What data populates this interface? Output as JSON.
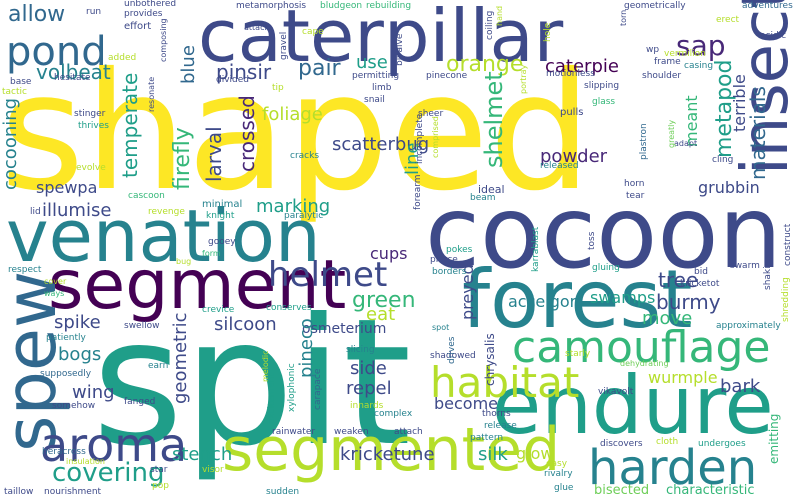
{
  "words": {
    "shaped": "shaped",
    "spit": "spit",
    "cocoon": "cocoon",
    "caterpillar": "caterpillar",
    "venation": "venation",
    "forest": "forest",
    "segment": "segment",
    "spew": "spew",
    "endure": "endure",
    "segmented": "segmented",
    "insect": "insect",
    "camouflage": "camouflage",
    "harden": "harden",
    "aroma": "aroma",
    "habitat": "habitat",
    "helmet": "helmet",
    "pond": "pond",
    "covering": "covering",
    "allow": "allow",
    "volbeat": "volbeat",
    "pinsir": "pinsir",
    "pair": "pair",
    "use": "use",
    "orange": "orange",
    "caterpie": "caterpie",
    "sap": "sap",
    "metapod": "metapod",
    "blue": "blue",
    "foliage": "foliage",
    "scatterbug": "scatterbug",
    "shelmet": "shelmet",
    "meant": "meant",
    "terrible": "terrible",
    "materials": "materials",
    "temperate": "temperate",
    "firefly": "firefly",
    "larval": "larval",
    "crossed": "crossed",
    "line": "line",
    "powder": "powder",
    "grubbin": "grubbin",
    "cocooning": "cocooning",
    "spewpa": "spewpa",
    "illumise": "illumise",
    "marking": "marking",
    "cups": "cups",
    "accelgor": "accelgor",
    "swamps": "swamps",
    "tree": "tree",
    "burmy": "burmy",
    "green": "green",
    "eat": "eat",
    "silcoon": "silcoon",
    "osmeterium": "osmeterium",
    "preyed": "preyed",
    "move": "move",
    "spike": "spike",
    "bogs": "bogs",
    "geometric": "geometric",
    "pineco": "pineco",
    "side": "side",
    "repel": "repel",
    "wurmple": "wurmple",
    "wing": "wing",
    "become": "become",
    "bark": "bark",
    "glow": "glow",
    "stench": "stench",
    "kricketune": "kricketune",
    "silk": "silk",
    "bisected": "bisected",
    "characteristic": "characteristic",
    "emitting": "emitting",
    "revenge": "revenge",
    "minimal": "minimal",
    "knight": "knight",
    "cascoon": "cascoon",
    "lid": "lid",
    "respect": "respect",
    "gooey": "gooey",
    "form": "form",
    "bug": "bug",
    "paralytic": "paralytic",
    "cracks": "cracks",
    "crevice": "crevice",
    "conserves": "conserves",
    "swellow": "swellow",
    "patiently": "patiently",
    "supposedly": "supposedly",
    "somehow": "somehow",
    "fanged": "fanged",
    "earn": "earn",
    "melodic": "melodic",
    "excitement": "excitement",
    "xylophonic": "xylophonic",
    "carapace": "carapace",
    "slicing": "slicing",
    "shadowed": "shadowed",
    "innards": "innards",
    "heracross": "heracross",
    "insulation": "insulation",
    "star": "star",
    "pop": "pop",
    "visor": "visor",
    "rainwater": "rainwater",
    "weaken": "weaken",
    "attach": "attach",
    "complex": "complex",
    "sudden": "sudden",
    "taillow": "taillow",
    "nourishment": "nourishment",
    "thorns": "thorns",
    "release": "release",
    "pattern": "pattern",
    "rivalry": "rivalry",
    "easy": "easy",
    "glue": "glue",
    "discovers": "discovers",
    "cloth": "cloth",
    "undergoes": "undergoes",
    "vikavolt": "vikavolt",
    "starly": "starly",
    "dehydrating": "dehydrating",
    "approximately": "approximately",
    "shredding": "shredding",
    "shaking": "shaking",
    "swarm": "swarm",
    "bid": "bid",
    "kricketot": "kricketot",
    "construct": "construct",
    "drives": "drives",
    "chrysalis": "chrysalis",
    "spot": "spot",
    "pokes": "pokes",
    "pierce": "pierce",
    "borders": "borders",
    "karrablast": "karrablast",
    "toss": "toss",
    "gluing": "gluing",
    "ideal": "ideal",
    "beam": "beam",
    "forearm": "forearm",
    "horn": "horn",
    "tear": "tear",
    "released": "released",
    "adapt": "adapt",
    "cling": "cling",
    "greatly": "greatly",
    "plastron": "plastron",
    "incomplete": "incomplete",
    "sheer": "sheer",
    "comprised": "comprised",
    "pulls": "pulls",
    "glass": "glass",
    "slipping": "slipping",
    "shoulder": "shoulder",
    "frame": "frame",
    "casing": "casing",
    "acidic": "acidic",
    "vermilion": "vermilion",
    "erect": "erect",
    "adventures": "adventures",
    "torn": "torn",
    "geometrically": "geometrically",
    "wp": "wp",
    "hand": "hand",
    "coiling": "coiling",
    "hole": "hole",
    "portray": "portray",
    "motionless": "motionless",
    "pinecone": "pinecone",
    "permitting": "permitting",
    "bivalve": "bivalve",
    "snail": "snail",
    "limb": "limb",
    "bludgeon": "bludgeon",
    "rebuilding": "rebuilding",
    "metamorphosis": "metamorphosis",
    "cape": "cape",
    "gravel": "gravel",
    "attack": "attack",
    "provides": "provides",
    "unbothered": "unbothered",
    "run": "run",
    "effort": "effort",
    "added": "added",
    "composing": "composing",
    "divided": "divided",
    "tip": "tip",
    "resonate": "resonate",
    "hesitate": "hesitate",
    "base": "base",
    "tactic": "tactic",
    "stinger": "stinger",
    "thrives": "thrives",
    "evolve": "evolve",
    "cover": "cover",
    "ways": "ways"
  }
}
